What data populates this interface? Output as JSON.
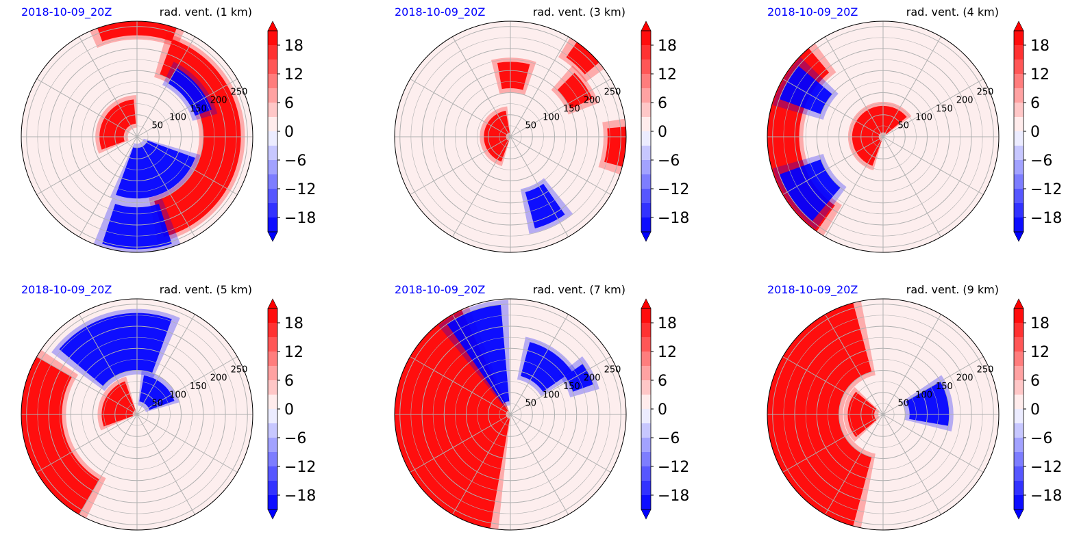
{
  "figure": {
    "panels": [
      {
        "date": "2018-10-09_20Z",
        "title": "rad. vent. (1 km)"
      },
      {
        "date": "2018-10-09_20Z",
        "title": "rad. vent. (3 km)"
      },
      {
        "date": "2018-10-09_20Z",
        "title": "rad. vent. (4 km)"
      },
      {
        "date": "2018-10-09_20Z",
        "title": "rad. vent. (5 km)"
      },
      {
        "date": "2018-10-09_20Z",
        "title": "rad. vent. (7 km)"
      },
      {
        "date": "2018-10-09_20Z",
        "title": "rad. vent. (9 km)"
      }
    ]
  },
  "colors": {
    "positive": "#ff0000",
    "negative": "#0000ff",
    "neutral": "#ffffff",
    "date_text": "#0000ff",
    "grid": "#b0b0b0"
  },
  "chart_data": [
    {
      "type": "heatmap",
      "projection": "polar",
      "title": "rad. vent. (1 km)",
      "subtitle": "2018-10-09_20Z",
      "radial_ticks": [
        "50",
        "100",
        "150",
        "200",
        "250"
      ],
      "colorbar_ticks": [
        "18",
        "12",
        "6",
        "0",
        "−6",
        "−12",
        "−18"
      ],
      "colorbar_range": [
        -21,
        21
      ],
      "colorbar_extend": "both",
      "grid": true,
      "features": [
        {
          "kind": "arc",
          "sign": "positive",
          "r_inner": 30,
          "r_outer": 85,
          "theta_start": 95,
          "theta_end": 200
        },
        {
          "kind": "arc",
          "sign": "positive",
          "r_inner": 150,
          "r_outer": 235,
          "theta_start": -75,
          "theta_end": 70
        },
        {
          "kind": "arc",
          "sign": "positive",
          "r_inner": 230,
          "r_outer": 262,
          "theta_start": 70,
          "theta_end": 110
        },
        {
          "kind": "arc",
          "sign": "negative",
          "r_inner": 25,
          "r_outer": 140,
          "theta_start": -110,
          "theta_end": -20
        },
        {
          "kind": "arc",
          "sign": "negative",
          "r_inner": 160,
          "r_outer": 255,
          "theta_start": -108,
          "theta_end": -72
        },
        {
          "kind": "arc",
          "sign": "negative",
          "r_inner": 140,
          "r_outer": 180,
          "theta_start": 20,
          "theta_end": 60
        }
      ]
    },
    {
      "type": "heatmap",
      "projection": "polar",
      "title": "rad. vent. (3 km)",
      "subtitle": "2018-10-09_20Z",
      "radial_ticks": [
        "50",
        "100",
        "150",
        "200",
        "250"
      ],
      "colorbar_ticks": [
        "18",
        "12",
        "6",
        "0",
        "−6",
        "−12",
        "−18"
      ],
      "colorbar_range": [
        -21,
        21
      ],
      "colorbar_extend": "both",
      "grid": true,
      "features": [
        {
          "kind": "arc",
          "sign": "positive",
          "r_inner": 10,
          "r_outer": 60,
          "theta_start": 100,
          "theta_end": 250
        },
        {
          "kind": "arc",
          "sign": "positive",
          "r_inner": 150,
          "r_outer": 205,
          "theta_start": 25,
          "theta_end": 45
        },
        {
          "kind": "arc",
          "sign": "positive",
          "r_inner": 220,
          "r_outer": 262,
          "theta_start": 40,
          "theta_end": 55
        },
        {
          "kind": "arc",
          "sign": "positive",
          "r_inner": 220,
          "r_outer": 262,
          "theta_start": -15,
          "theta_end": 5
        },
        {
          "kind": "arc",
          "sign": "positive",
          "r_inner": 110,
          "r_outer": 170,
          "theta_start": 75,
          "theta_end": 100
        },
        {
          "kind": "arc",
          "sign": "negative",
          "r_inner": 130,
          "r_outer": 215,
          "theta_start": -75,
          "theta_end": -55
        }
      ]
    },
    {
      "type": "heatmap",
      "projection": "polar",
      "title": "rad. vent. (4 km)",
      "subtitle": "2018-10-09_20Z",
      "radial_ticks": [
        "50",
        "100",
        "150",
        "200",
        "250"
      ],
      "colorbar_ticks": [
        "18",
        "12",
        "6",
        "0",
        "−6",
        "−12",
        "−18"
      ],
      "colorbar_range": [
        -21,
        21
      ],
      "colorbar_extend": "both",
      "grid": true,
      "features": [
        {
          "kind": "arc",
          "sign": "positive",
          "r_inner": 10,
          "r_outer": 70,
          "theta_start": 40,
          "theta_end": 250
        },
        {
          "kind": "arc",
          "sign": "positive",
          "r_inner": 190,
          "r_outer": 262,
          "theta_start": 130,
          "theta_end": 235
        },
        {
          "kind": "arc",
          "sign": "negative",
          "r_inner": 150,
          "r_outer": 250,
          "theta_start": 140,
          "theta_end": 160
        },
        {
          "kind": "arc",
          "sign": "negative",
          "r_inner": 150,
          "r_outer": 250,
          "theta_start": 200,
          "theta_end": 230
        }
      ]
    },
    {
      "type": "heatmap",
      "projection": "polar",
      "title": "rad. vent. (5 km)",
      "subtitle": "2018-10-09_20Z",
      "radial_ticks": [
        "50",
        "100",
        "150",
        "200",
        "250"
      ],
      "colorbar_ticks": [
        "18",
        "12",
        "6",
        "0",
        "−6",
        "−12",
        "−18"
      ],
      "colorbar_range": [
        -21,
        21
      ],
      "colorbar_extend": "both",
      "grid": true,
      "features": [
        {
          "kind": "arc",
          "sign": "positive",
          "r_inner": 10,
          "r_outer": 80,
          "theta_start": 110,
          "theta_end": 200
        },
        {
          "kind": "arc",
          "sign": "positive",
          "r_inner": 170,
          "r_outer": 262,
          "theta_start": 150,
          "theta_end": 240
        },
        {
          "kind": "arc",
          "sign": "negative",
          "r_inner": 100,
          "r_outer": 230,
          "theta_start": 70,
          "theta_end": 140
        },
        {
          "kind": "arc",
          "sign": "negative",
          "r_inner": 30,
          "r_outer": 90,
          "theta_start": 20,
          "theta_end": 80
        }
      ]
    },
    {
      "type": "heatmap",
      "projection": "polar",
      "title": "rad. vent. (7 km)",
      "subtitle": "2018-10-09_20Z",
      "radial_ticks": [
        "50",
        "100",
        "150",
        "200",
        "250"
      ],
      "colorbar_ticks": [
        "18",
        "12",
        "6",
        "0",
        "−6",
        "−12",
        "−18"
      ],
      "colorbar_range": [
        -21,
        21
      ],
      "colorbar_extend": "both",
      "grid": true,
      "features": [
        {
          "kind": "arc",
          "sign": "positive",
          "r_inner": 10,
          "r_outer": 262,
          "theta_start": 115,
          "theta_end": 260
        },
        {
          "kind": "arc",
          "sign": "negative",
          "r_inner": 30,
          "r_outer": 250,
          "theta_start": 95,
          "theta_end": 125
        },
        {
          "kind": "arc",
          "sign": "negative",
          "r_inner": 90,
          "r_outer": 170,
          "theta_start": 35,
          "theta_end": 75
        },
        {
          "kind": "arc",
          "sign": "negative",
          "r_inner": 150,
          "r_outer": 200,
          "theta_start": 20,
          "theta_end": 35
        }
      ]
    },
    {
      "type": "heatmap",
      "projection": "polar",
      "title": "rad. vent. (9 km)",
      "subtitle": "2018-10-09_20Z",
      "radial_ticks": [
        "50",
        "100",
        "150",
        "200",
        "250"
      ],
      "colorbar_ticks": [
        "18",
        "12",
        "6",
        "0",
        "−6",
        "−12",
        "−18"
      ],
      "colorbar_range": [
        -21,
        21
      ],
      "colorbar_extend": "both",
      "grid": true,
      "features": [
        {
          "kind": "arc",
          "sign": "positive",
          "r_inner": 100,
          "r_outer": 262,
          "theta_start": 105,
          "theta_end": 255
        },
        {
          "kind": "arc",
          "sign": "positive",
          "r_inner": 20,
          "r_outer": 80,
          "theta_start": 140,
          "theta_end": 220
        },
        {
          "kind": "arc",
          "sign": "negative",
          "r_inner": 60,
          "r_outer": 150,
          "theta_start": -10,
          "theta_end": 30
        }
      ]
    }
  ]
}
